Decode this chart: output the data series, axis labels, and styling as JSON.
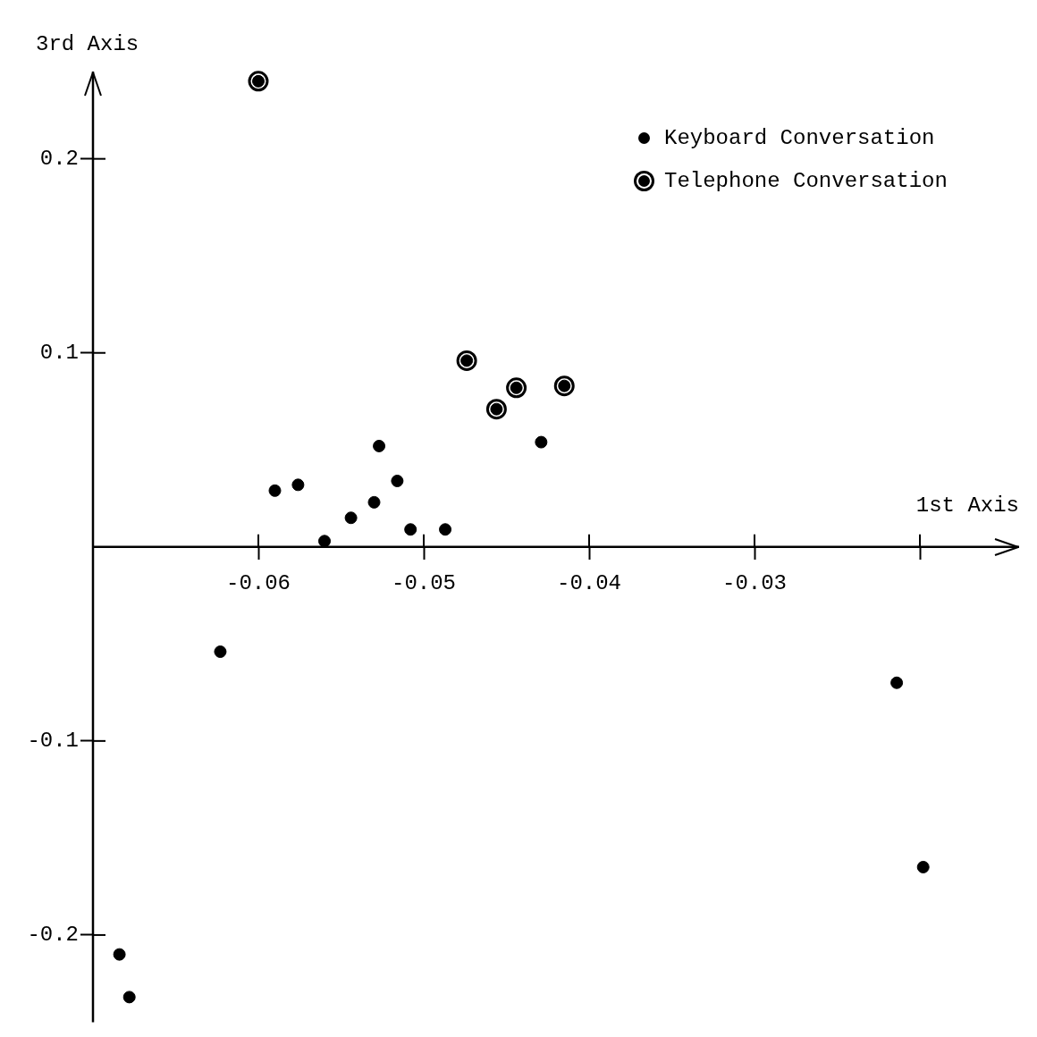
{
  "chart_data": {
    "type": "scatter",
    "xlabel": "1st Axis",
    "ylabel": "3rd Axis",
    "xlim": [
      -0.07,
      -0.014
    ],
    "ylim": [
      -0.245,
      0.245
    ],
    "xticks": [
      -0.06,
      -0.05,
      -0.04,
      -0.03,
      {
        "value": -0.02,
        "label": null
      }
    ],
    "yticks": [
      -0.2,
      -0.1,
      0.1,
      0.2
    ],
    "grid": false,
    "legend": "top right",
    "marker": "circle",
    "series": [
      {
        "name": "Keyboard Conversation",
        "color": "#000000",
        "x": [
          -0.059,
          -0.0576,
          -0.056,
          -0.0544,
          -0.053,
          -0.0527,
          -0.0516,
          -0.0508,
          -0.0487,
          -0.0429,
          -0.0623,
          -0.0214,
          -0.0198,
          -0.0684,
          -0.0678
        ],
        "values": [
          0.029,
          0.032,
          0.003,
          0.015,
          0.023,
          0.052,
          0.034,
          0.009,
          0.009,
          0.054,
          -0.054,
          -0.07,
          -0.165,
          -0.21,
          -0.232
        ]
      },
      {
        "name": "Telephone Conversation",
        "color": "#000000",
        "x": [
          -0.06,
          -0.0474,
          -0.0456,
          -0.0444,
          -0.0415
        ],
        "values": [
          0.24,
          0.096,
          0.071,
          0.082,
          0.083
        ]
      }
    ]
  }
}
